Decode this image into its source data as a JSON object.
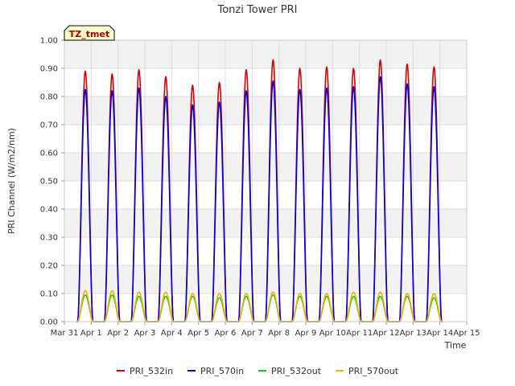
{
  "chart_data": {
    "type": "line",
    "title": "Tonzi Tower PRI",
    "xlabel": "Time",
    "ylabel": "PRI Channel (W/m2/nm)",
    "ylim": [
      0,
      1.0
    ],
    "xlim": [
      0,
      15
    ],
    "grid": true,
    "y_ticks": [
      "0.00",
      "0.10",
      "0.20",
      "0.30",
      "0.40",
      "0.50",
      "0.60",
      "0.70",
      "0.80",
      "0.90",
      "1.00"
    ],
    "x_ticks": [
      "Mar 31",
      "Apr 1",
      "Apr 2",
      "Apr 3",
      "Apr 4",
      "Apr 5",
      "Apr 6",
      "Apr 7",
      "Apr 8",
      "Apr 9",
      "Apr 10",
      "Apr 11",
      "Apr 12",
      "Apr 13",
      "Apr 14",
      "Apr 15"
    ],
    "annotation": "TZ_tmet",
    "legend_position": "bottom",
    "series": [
      {
        "name": "PRI_532in",
        "color": "#dd0000",
        "daily_peaks": [
          0.89,
          0.88,
          0.895,
          0.87,
          0.84,
          0.85,
          0.895,
          0.93,
          0.9,
          0.905,
          0.9,
          0.93,
          0.915,
          0.905
        ]
      },
      {
        "name": "PRI_570in",
        "color": "#0000dd",
        "daily_peaks": [
          0.825,
          0.82,
          0.83,
          0.8,
          0.77,
          0.78,
          0.82,
          0.855,
          0.825,
          0.83,
          0.835,
          0.87,
          0.845,
          0.835
        ]
      },
      {
        "name": "PRI_532out",
        "color": "#00dd00",
        "daily_peaks": [
          0.095,
          0.095,
          0.09,
          0.09,
          0.09,
          0.085,
          0.09,
          0.095,
          0.09,
          0.09,
          0.09,
          0.09,
          0.09,
          0.085
        ]
      },
      {
        "name": "PRI_570out",
        "color": "#ffaa00",
        "daily_peaks": [
          0.11,
          0.11,
          0.105,
          0.105,
          0.1,
          0.1,
          0.1,
          0.105,
          0.1,
          0.1,
          0.105,
          0.105,
          0.1,
          0.1
        ]
      }
    ],
    "day_peak_x": [
      0.78,
      1.78,
      2.78,
      3.78,
      4.78,
      5.78,
      6.78,
      7.78,
      8.78,
      9.78,
      10.78,
      11.78,
      12.78,
      13.78
    ],
    "day_half_width": 0.28
  }
}
